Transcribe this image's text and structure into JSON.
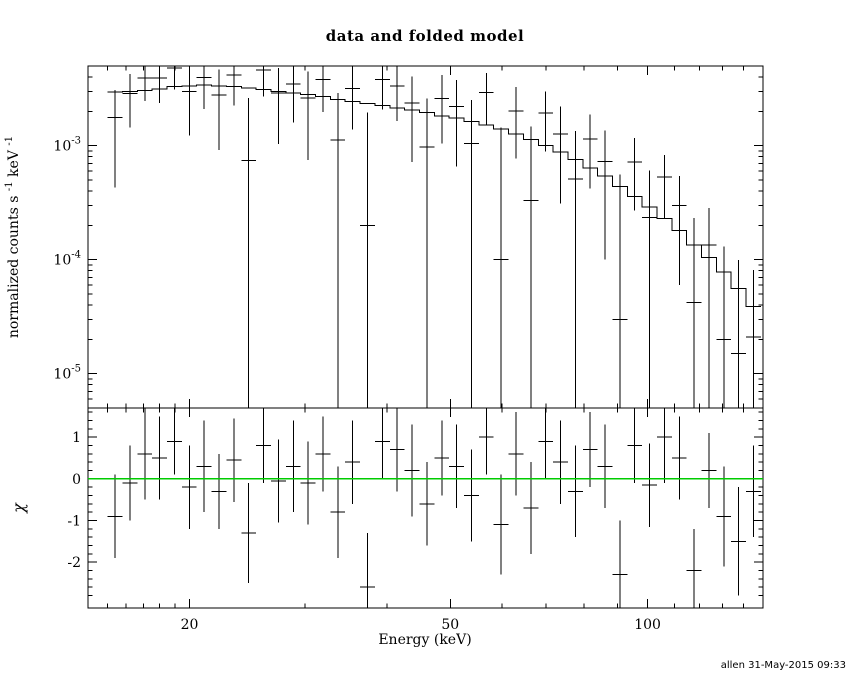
{
  "chart_data": {
    "type": "scatter",
    "title": "data and folded model",
    "x_label": "Energy (keV)",
    "footer": "allen 31-May-2015 09:33",
    "colors": {
      "data": "#000000",
      "model": "#000000",
      "zero_line": "#00cc00",
      "footer_text": "#009900",
      "background": "#ffffff"
    },
    "x_axis": {
      "scale": "log",
      "min": 14,
      "max": 150,
      "major_ticks": [
        20,
        50,
        100
      ],
      "tick_labels": [
        "20",
        "50",
        "100"
      ],
      "minor_ticks": [
        15,
        16,
        17,
        18,
        19,
        30,
        40,
        60,
        70,
        80,
        90,
        110,
        120,
        130,
        140
      ]
    },
    "bin_edges_keV": [
      15.0,
      15.8,
      16.65,
      17.54,
      18.48,
      19.47,
      20.51,
      21.61,
      22.77,
      23.99,
      25.27,
      26.63,
      28.05,
      29.56,
      31.14,
      32.81,
      34.56,
      36.42,
      38.37,
      40.42,
      42.59,
      44.87,
      47.27,
      49.8,
      52.47,
      55.28,
      58.24,
      61.36,
      64.64,
      68.1,
      71.75,
      75.59,
      79.64,
      83.9,
      88.39,
      93.12,
      98.11,
      103.36,
      108.9,
      114.73,
      120.87,
      127.34,
      134.16,
      141.34,
      148.91
    ],
    "top_panel": {
      "y_label_parts": {
        "p1": "normalized counts s",
        "e1": "-1",
        "p2": " keV",
        "e2": "-1"
      },
      "y_axis": {
        "scale": "log",
        "min": 5e-06,
        "max": 0.005,
        "major_ticks": [
          1e-05,
          0.0001,
          0.001
        ],
        "tick_labels": [
          {
            "base": "10",
            "exp": "-5"
          },
          {
            "base": "10",
            "exp": "-4"
          },
          {
            "base": "10",
            "exp": "-3"
          }
        ]
      },
      "model": [
        0.00295,
        0.003,
        0.00305,
        0.00315,
        0.0033,
        0.00335,
        0.0034,
        0.00335,
        0.0033,
        0.0032,
        0.0031,
        0.003,
        0.0029,
        0.0028,
        0.0027,
        0.00255,
        0.00245,
        0.00235,
        0.00225,
        0.00215,
        0.00205,
        0.00195,
        0.00182,
        0.00175,
        0.00163,
        0.00152,
        0.0014,
        0.00127,
        0.00113,
        0.001,
        0.00088,
        0.00076,
        0.00064,
        0.00054,
        0.00044,
        0.00036,
        0.00029,
        0.00023,
        0.00018,
        0.000135,
        0.000105,
        7.8e-05,
        5.6e-05,
        3.9e-05
      ],
      "data": [
        0.00176,
        0.00286,
        0.00394,
        0.00393,
        0.0048,
        0.003,
        0.00395,
        0.00279,
        0.00415,
        0.00074,
        0.0046,
        0.00291,
        0.00346,
        0.00261,
        0.00381,
        0.00112,
        0.00316,
        0.0002,
        0.0038,
        0.00334,
        0.00238,
        0.00097,
        0.0026,
        0.00221,
        0.00104,
        0.00294,
        0.0001,
        0.00202,
        0.00033,
        0.00194,
        0.00126,
        0.00051,
        0.00115,
        0.00073,
        3e-05,
        0.00072,
        0.000235,
        0.00053,
        0.0003,
        4.2e-05,
        0.000135,
        2e-05,
        1.5e-05,
        2.1e-05
      ],
      "data_err": [
        0.00133,
        0.00141,
        0.00148,
        0.00157,
        0.00169,
        0.00177,
        0.00185,
        0.00187,
        0.0019,
        0.00189,
        0.00189,
        0.00188,
        0.00187,
        0.00186,
        0.00184,
        0.00179,
        0.00177,
        0.00175,
        0.00172,
        0.00169,
        0.00166,
        0.00163,
        0.00156,
        0.00155,
        0.00148,
        0.00142,
        0.00135,
        0.00125,
        0.00115,
        0.00105,
        0.00095,
        0.00084,
        0.00073,
        0.00063,
        0.00053,
        0.00045,
        0.00037,
        0.0003,
        0.00024,
        0.00019,
        0.00015,
        0.00011,
        8.4e-05,
        6e-05
      ]
    },
    "bottom_panel": {
      "y_label": "χ",
      "y_axis": {
        "scale": "linear",
        "min": -3.1,
        "max": 1.7,
        "major_ticks": [
          -2,
          -1,
          0,
          1
        ],
        "tick_labels": [
          "-2",
          "-1",
          "0",
          "1"
        ],
        "minor_step": 0.2
      },
      "chi": [
        -0.9,
        -0.1,
        0.6,
        0.5,
        0.9,
        -0.2,
        0.3,
        -0.3,
        0.45,
        -1.3,
        0.8,
        -0.05,
        0.3,
        -0.1,
        0.6,
        -0.8,
        0.4,
        -2.6,
        0.9,
        0.7,
        0.2,
        -0.6,
        0.5,
        0.3,
        -0.4,
        1.0,
        -1.1,
        0.6,
        -0.7,
        0.9,
        0.4,
        -0.3,
        0.7,
        0.3,
        -2.3,
        0.8,
        -0.15,
        1.0,
        0.5,
        -2.2,
        0.2,
        -0.9,
        -1.5,
        -0.3
      ],
      "chi_err": [
        1.0,
        0.9,
        1.1,
        1.0,
        0.8,
        1.0,
        1.1,
        0.9,
        1.0,
        1.2,
        0.9,
        1.0,
        1.1,
        1.0,
        0.9,
        1.1,
        1.0,
        1.3,
        0.9,
        1.0,
        1.1,
        1.0,
        0.9,
        1.0,
        1.1,
        0.9,
        1.2,
        1.0,
        1.1,
        0.9,
        1.0,
        1.1,
        0.9,
        1.0,
        1.3,
        0.9,
        1.0,
        1.1,
        1.0,
        1.0,
        0.9,
        1.2,
        1.3,
        1.1
      ]
    }
  }
}
